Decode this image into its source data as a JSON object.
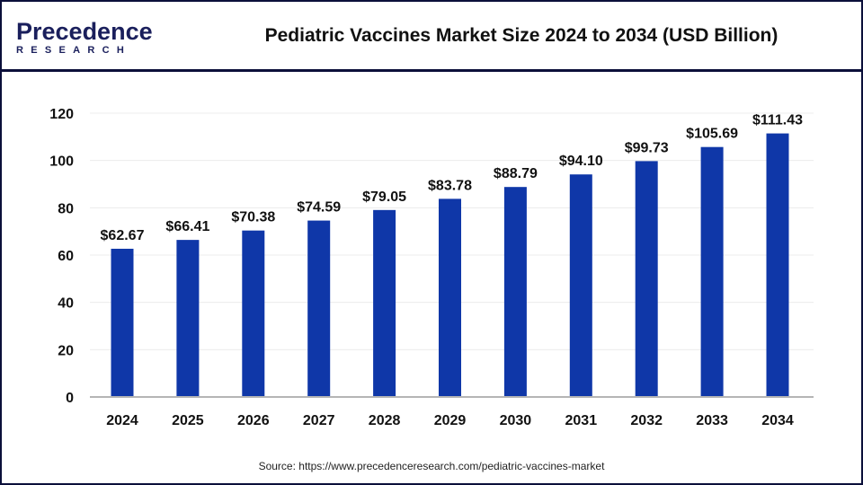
{
  "header": {
    "logo_text_main": "Precedence",
    "logo_text_sub": "RESEARCH",
    "title": "Pediatric Vaccines Market Size 2024 to 2034 (USD Billion)"
  },
  "source": "Source: https://www.precedenceresearch.com/pediatric-vaccines-market",
  "chart_data": {
    "type": "bar",
    "title": "Pediatric Vaccines Market Size 2024 to 2034 (USD Billion)",
    "categories": [
      "2024",
      "2025",
      "2026",
      "2027",
      "2028",
      "2029",
      "2030",
      "2031",
      "2032",
      "2033",
      "2034"
    ],
    "values": [
      62.67,
      66.41,
      70.38,
      74.59,
      79.05,
      83.78,
      88.79,
      94.1,
      99.73,
      105.69,
      111.43
    ],
    "data_labels": [
      "$62.67",
      "$66.41",
      "$70.38",
      "$74.59",
      "$79.05",
      "$83.78",
      "$88.79",
      "$94.10",
      "$99.73",
      "$105.69",
      "$111.43"
    ],
    "yticks": [
      "0",
      "20",
      "40",
      "60",
      "80",
      "100",
      "120"
    ],
    "ylim": [
      0,
      120
    ],
    "grid": true,
    "bar_color": "#0f37a8",
    "xlabel": "",
    "ylabel": ""
  }
}
